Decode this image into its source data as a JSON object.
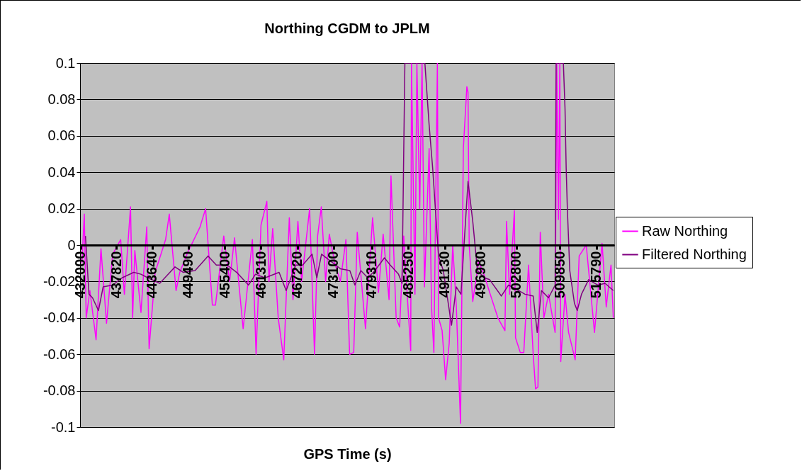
{
  "chart_data": {
    "type": "line",
    "title": "Northing CGDM to JPLM",
    "xlabel": "GPS Time (s)",
    "series": [
      {
        "name": "Raw Northing",
        "color": "#ff00ff",
        "x": [
          432200,
          432590,
          432900,
          433500,
          434500,
          435300,
          436200,
          437200,
          438500,
          439100,
          440100,
          440440,
          440800,
          441800,
          442740,
          443120,
          444100,
          445800,
          446400,
          447500,
          448100,
          449400,
          451400,
          452300,
          453400,
          453900,
          455250,
          456200,
          457000,
          458400,
          459900,
          460500,
          461300,
          462250,
          462600,
          463200,
          464100,
          465000,
          465900,
          466500,
          467300,
          467900,
          469200,
          469600,
          470000,
          470500,
          471100,
          471800,
          472400,
          473300,
          474200,
          475100,
          475700,
          476370,
          476940,
          478280,
          479430,
          480390,
          481150,
          482110,
          482420,
          483260,
          483830,
          484490,
          484790,
          485630,
          485750,
          486320,
          486630,
          487090,
          487470,
          487860,
          488620,
          489010,
          489390,
          489960,
          490150,
          490730,
          491300,
          491880,
          492450,
          493030,
          493720,
          494180,
          494750,
          494940,
          495130,
          495710,
          496670,
          497620,
          498450,
          499790,
          500940,
          501200,
          501700,
          502470,
          502660,
          503430,
          504000,
          504770,
          505530,
          505910,
          506300,
          506680,
          507260,
          508020,
          509090,
          509360,
          509630,
          509860,
          510010,
          510700,
          511280,
          512350,
          513000,
          514150,
          515490,
          516720,
          517400,
          518170,
          518550
        ],
        "values": [
          -0.01,
          0.017,
          -0.04,
          -0.025,
          -0.052,
          -0.002,
          -0.043,
          -0.005,
          0.003,
          -0.027,
          0.021,
          -0.04,
          -0.003,
          -0.037,
          0.01,
          -0.057,
          -0.015,
          0.003,
          0.017,
          -0.025,
          -0.015,
          -0.004,
          0.01,
          0.02,
          -0.033,
          -0.033,
          0.005,
          -0.02,
          0.004,
          -0.046,
          0.003,
          -0.06,
          0.011,
          0.024,
          -0.02,
          0.009,
          -0.04,
          -0.063,
          0.015,
          -0.03,
          0.013,
          -0.02,
          0.02,
          -0.02,
          -0.06,
          0.005,
          0.021,
          -0.02,
          0.006,
          -0.01,
          -0.02,
          0.003,
          -0.06,
          -0.059,
          0.007,
          -0.046,
          0.015,
          -0.026,
          0.006,
          -0.03,
          0.038,
          -0.04,
          -0.045,
          0.005,
          -0.013,
          -0.058,
          0.1,
          -0.027,
          0.1,
          0.02,
          0.1,
          -0.023,
          0.053,
          -0.034,
          -0.059,
          0.1,
          -0.04,
          -0.047,
          -0.074,
          -0.054,
          0,
          -0.033,
          -0.098,
          0.053,
          0.087,
          0.084,
          0,
          -0.031,
          -0.009,
          -0.017,
          -0.026,
          -0.04,
          -0.047,
          0.013,
          -0.027,
          0.019,
          -0.051,
          -0.059,
          -0.059,
          -0.011,
          -0.06,
          -0.079,
          -0.078,
          0.007,
          -0.04,
          -0.027,
          -0.048,
          0.1,
          0.014,
          0.1,
          -0.064,
          -0.027,
          -0.048,
          -0.063,
          -0.006,
          0,
          -0.048,
          0.001,
          -0.034,
          -0.011,
          -0.04
        ]
      },
      {
        "name": "Filtered Northing",
        "color": "#800080",
        "x": [
          432780,
          433350,
          433930,
          434890,
          435650,
          437190,
          438720,
          440630,
          441780,
          442930,
          444850,
          447330,
          448680,
          450590,
          452700,
          454040,
          455820,
          457350,
          459270,
          460410,
          461950,
          464240,
          465390,
          466930,
          468070,
          469610,
          470370,
          471140,
          472670,
          474200,
          475730,
          476560,
          477520,
          478660,
          479810,
          481350,
          482300,
          483640,
          484220,
          484680,
          487930,
          488620,
          489200,
          489770,
          490150,
          490920,
          492260,
          493030,
          493790,
          494940,
          495710,
          496470,
          497620,
          498450,
          500360,
          501510,
          502660,
          504190,
          505530,
          506180,
          506870,
          508020,
          509090,
          509250,
          510430,
          510700,
          510890,
          511080,
          511470,
          512230,
          512690,
          513380,
          514530,
          516060,
          517210,
          518550
        ],
        "values": [
          0.005,
          -0.027,
          -0.029,
          -0.036,
          -0.023,
          -0.022,
          -0.018,
          -0.015,
          -0.016,
          -0.018,
          -0.021,
          -0.012,
          -0.015,
          -0.014,
          -0.006,
          -0.011,
          -0.011,
          -0.015,
          -0.022,
          -0.016,
          -0.018,
          -0.015,
          -0.025,
          -0.011,
          -0.011,
          -0.005,
          -0.018,
          -0.005,
          -0.009,
          -0.013,
          -0.014,
          -0.022,
          -0.014,
          -0.018,
          -0.014,
          -0.007,
          -0.011,
          -0.016,
          -0.021,
          0.1,
          0.1,
          0.066,
          0.042,
          0.013,
          -0.006,
          -0.014,
          -0.044,
          -0.023,
          -0.027,
          0.035,
          0.013,
          -0.014,
          -0.018,
          -0.019,
          -0.028,
          -0.022,
          -0.024,
          -0.027,
          -0.028,
          -0.048,
          -0.025,
          -0.029,
          -0.022,
          0.1,
          0.1,
          0.075,
          0.042,
          0.02,
          -0.014,
          -0.032,
          -0.036,
          -0.027,
          -0.019,
          -0.022,
          -0.021,
          -0.025
        ]
      }
    ],
    "xlim": [
      431900,
      518700
    ],
    "xticks": [
      432000,
      437820,
      443640,
      449490,
      455400,
      461310,
      467220,
      473100,
      479310,
      485250,
      491130,
      496980,
      502800,
      509850,
      515790
    ],
    "ylim": [
      -0.1,
      0.1
    ],
    "yticks": [
      -0.1,
      -0.08,
      -0.06,
      -0.04,
      -0.02,
      0,
      0.02,
      0.04,
      0.06,
      0.08,
      0.1
    ],
    "grid": "y",
    "legend": "right"
  }
}
